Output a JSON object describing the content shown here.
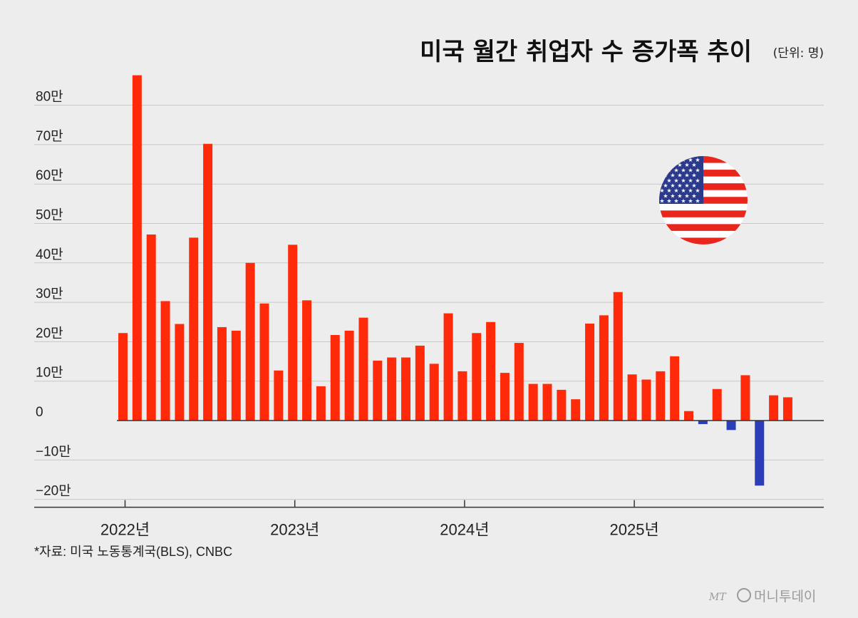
{
  "title": "미국 월간 취업자 수 증가폭 추이",
  "unit": "(단위: 명)",
  "source": "*자료: 미국 노동통계국(BLS), CNBC",
  "brand": {
    "mark": "MT",
    "name": "머니투데이"
  },
  "colors": {
    "positive": "#ff2a0a",
    "negative": "#2b3db8",
    "grid": "#c7c7c7",
    "axis": "#333333"
  },
  "flag": {
    "icon": "us-flag-icon"
  },
  "chart_data": {
    "type": "bar",
    "unit": "명",
    "ylim": [
      -200000,
      880000
    ],
    "yticks": [
      {
        "value": 800000,
        "label": "80만"
      },
      {
        "value": 700000,
        "label": "70만"
      },
      {
        "value": 600000,
        "label": "60만"
      },
      {
        "value": 500000,
        "label": "50만"
      },
      {
        "value": 400000,
        "label": "40만"
      },
      {
        "value": 300000,
        "label": "30만"
      },
      {
        "value": 200000,
        "label": "20만"
      },
      {
        "value": 100000,
        "label": "10만"
      },
      {
        "value": 0,
        "label": "0"
      },
      {
        "value": -100000,
        "label": "−10만"
      },
      {
        "value": -200000,
        "label": "−20만"
      }
    ],
    "xticks": [
      {
        "index": 0,
        "label": "2022년"
      },
      {
        "index": 12,
        "label": "2023년"
      },
      {
        "index": 24,
        "label": "2024년"
      },
      {
        "index": 36,
        "label": "2025년"
      }
    ],
    "grid": true,
    "values": [
      222000,
      876000,
      472000,
      303000,
      245000,
      464000,
      702000,
      237000,
      228000,
      400000,
      297000,
      127000,
      446000,
      305000,
      87000,
      217000,
      228000,
      261000,
      152000,
      160000,
      160000,
      190000,
      144000,
      272000,
      125000,
      222000,
      250000,
      121000,
      197000,
      93000,
      93000,
      78000,
      54000,
      246000,
      267000,
      326000,
      117000,
      104000,
      125000,
      163000,
      24000,
      -9000,
      80000,
      -24000,
      115000,
      -165000,
      64000,
      59000
    ]
  }
}
